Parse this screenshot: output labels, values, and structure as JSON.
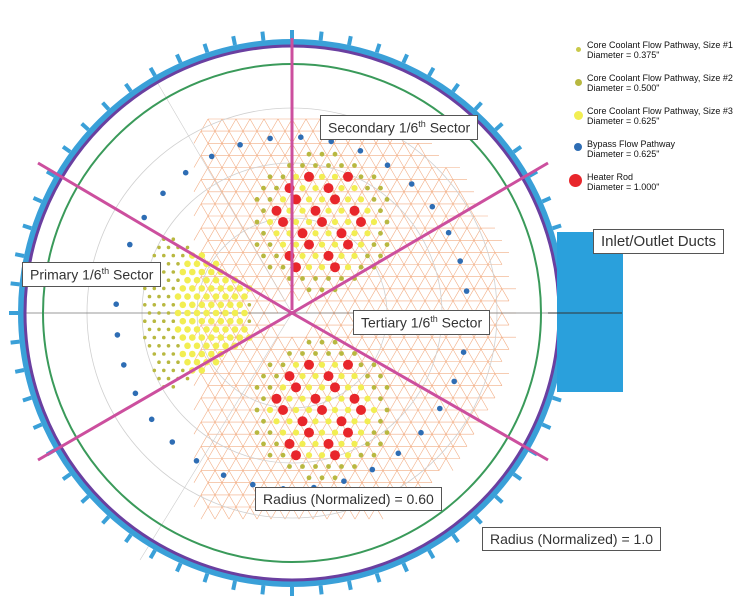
{
  "legend": [
    {
      "label": "Core Coolant Flow Pathway, Size #1",
      "diameter": "Diameter = 0.375\"",
      "color": "#c9c94a"
    },
    {
      "label": "Core Coolant Flow Pathway, Size #2",
      "diameter": "Diameter = 0.500\"",
      "color": "#b8b840"
    },
    {
      "label": "Core Coolant Flow Pathway, Size #3",
      "diameter": "Diameter = 0.625\"",
      "color": "#f2ee52"
    },
    {
      "label": "Bypass Flow Pathway",
      "diameter": "Diameter = 0.625\"",
      "color": "#2e6db4"
    },
    {
      "label": "Heater Rod",
      "diameter": "Diameter = 1.000\"",
      "color": "#e8262b"
    }
  ],
  "callouts": {
    "secondary": {
      "pre": "Secondary 1/6",
      "sup": "th",
      "post": " Sector"
    },
    "primary": {
      "pre": "Primary 1/6",
      "sup": "th",
      "post": " Sector"
    },
    "tertiary": {
      "pre": "Tertiary 1/6",
      "sup": "th",
      "post": " Sector"
    },
    "ducts": "Inlet/Outlet Ducts",
    "radius_060": "Radius (Normalized) = 0.60",
    "radius_100": "Radius (Normalized) = 1.0"
  },
  "colors": {
    "outer_ring": "#3aa0d8",
    "vessel": "#6a3fa0",
    "inner_ring": "#3a9a5a",
    "sector_lines": "#cc4f9e",
    "lattice": "#f0a070",
    "duct": "#2aa0dc"
  }
}
